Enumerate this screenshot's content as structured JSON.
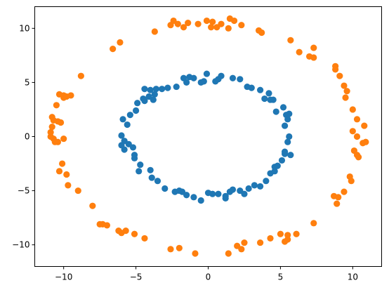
{
  "chart_data": {
    "type": "scatter",
    "title": "",
    "xlabel": "",
    "ylabel": "",
    "xlim": [
      -12,
      12
    ],
    "ylim": [
      -12,
      12
    ],
    "xticks": [
      -10,
      -5,
      0,
      5,
      10
    ],
    "yticks": [
      -10,
      -5,
      0,
      5,
      10
    ],
    "grid": false,
    "legend": "none",
    "series": [
      {
        "color": "#1f77b4",
        "points": [
          [
            -0.1,
            5.8
          ],
          [
            0.7,
            5.3
          ],
          [
            -0.5,
            5.0
          ],
          [
            -0.3,
            5.1
          ],
          [
            -1.0,
            5.4
          ],
          [
            -1.3,
            5.5
          ],
          [
            -1.5,
            5.0
          ],
          [
            -1.7,
            5.4
          ],
          [
            -2.2,
            4.6
          ],
          [
            -2.8,
            4.5
          ],
          [
            -3.2,
            4.4
          ],
          [
            -3.6,
            4.4
          ],
          [
            -4.0,
            4.3
          ],
          [
            -4.4,
            4.4
          ],
          [
            -3.7,
            3.9
          ],
          [
            -4.1,
            3.7
          ],
          [
            -3.8,
            3.4
          ],
          [
            -4.4,
            3.3
          ],
          [
            -4.5,
            3.5
          ],
          [
            -4.9,
            3.1
          ],
          [
            -5.0,
            2.4
          ],
          [
            -5.4,
            2.0
          ],
          [
            -5.9,
            1.6
          ],
          [
            -5.6,
            1.1
          ],
          [
            -6.0,
            0.1
          ],
          [
            -5.8,
            -0.4
          ],
          [
            -5.5,
            -0.7
          ],
          [
            -6.0,
            -0.8
          ],
          [
            -5.2,
            -1.0
          ],
          [
            -5.8,
            -1.2
          ],
          [
            -5.1,
            -1.7
          ],
          [
            -5.1,
            -2.0
          ],
          [
            -4.7,
            -2.6
          ],
          [
            -4.8,
            -3.2
          ],
          [
            -4.0,
            -3.1
          ],
          [
            -3.9,
            -3.8
          ],
          [
            -3.5,
            -4.1
          ],
          [
            -3.0,
            -4.8
          ],
          [
            -2.3,
            -5.1
          ],
          [
            -2.0,
            -5.0
          ],
          [
            -1.8,
            -5.1
          ],
          [
            -1.5,
            -5.4
          ],
          [
            -1.0,
            -5.6
          ],
          [
            -0.5,
            -5.9
          ],
          [
            0.0,
            -5.2
          ],
          [
            0.3,
            -5.3
          ],
          [
            0.7,
            -5.3
          ],
          [
            1.2,
            -5.5
          ],
          [
            1.2,
            -5.7
          ],
          [
            1.5,
            -5.1
          ],
          [
            1.7,
            -4.9
          ],
          [
            2.2,
            -5.0
          ],
          [
            2.5,
            -5.3
          ],
          [
            2.8,
            -4.8
          ],
          [
            3.2,
            -4.5
          ],
          [
            3.6,
            -4.6
          ],
          [
            4.0,
            -4.1
          ],
          [
            4.3,
            -3.4
          ],
          [
            4.6,
            -3.2
          ],
          [
            4.6,
            -2.8
          ],
          [
            4.8,
            -2.7
          ],
          [
            5.1,
            -2.2
          ],
          [
            5.3,
            -1.6
          ],
          [
            5.3,
            -1.4
          ],
          [
            5.5,
            -0.5
          ],
          [
            5.7,
            -1.7
          ],
          [
            5.6,
            0.0
          ],
          [
            5.3,
            1.0
          ],
          [
            5.5,
            1.6
          ],
          [
            5.4,
            2.0
          ],
          [
            5.6,
            2.1
          ],
          [
            5.2,
            2.7
          ],
          [
            4.7,
            2.3
          ],
          [
            4.3,
            3.4
          ],
          [
            4.5,
            3.4
          ],
          [
            3.9,
            3.5
          ],
          [
            3.6,
            4.3
          ],
          [
            4.2,
            4.0
          ],
          [
            3.0,
            4.5
          ],
          [
            2.7,
            4.6
          ],
          [
            2.2,
            5.3
          ],
          [
            1.7,
            5.4
          ],
          [
            0.5,
            5.1
          ],
          [
            0.9,
            5.6
          ]
        ]
      },
      {
        "color": "#ff7f0e",
        "points": [
          [
            -0.1,
            10.7
          ],
          [
            0.3,
            10.6
          ],
          [
            0.9,
            10.4
          ],
          [
            1.5,
            10.9
          ],
          [
            1.8,
            10.7
          ],
          [
            2.3,
            10.3
          ],
          [
            1.4,
            10.0
          ],
          [
            0.6,
            10.1
          ],
          [
            0.2,
            10.1
          ],
          [
            -0.7,
            10.4
          ],
          [
            -1.4,
            10.5
          ],
          [
            -1.7,
            10.1
          ],
          [
            -2.1,
            10.4
          ],
          [
            -2.4,
            10.7
          ],
          [
            -2.6,
            10.3
          ],
          [
            -3.7,
            9.7
          ],
          [
            3.5,
            9.8
          ],
          [
            3.7,
            9.6
          ],
          [
            5.7,
            8.9
          ],
          [
            6.3,
            7.8
          ],
          [
            7.0,
            7.4
          ],
          [
            7.3,
            8.2
          ],
          [
            7.3,
            7.3
          ],
          [
            8.8,
            6.5
          ],
          [
            8.8,
            6.2
          ],
          [
            9.1,
            5.6
          ],
          [
            9.4,
            4.7
          ],
          [
            9.6,
            4.2
          ],
          [
            9.5,
            3.6
          ],
          [
            10.0,
            2.5
          ],
          [
            10.3,
            1.6
          ],
          [
            10.8,
            1.0
          ],
          [
            10.3,
            0.0
          ],
          [
            10.0,
            0.5
          ],
          [
            10.9,
            -0.5
          ],
          [
            10.7,
            -0.6
          ],
          [
            10.1,
            -1.3
          ],
          [
            10.3,
            -1.7
          ],
          [
            10.4,
            -1.9
          ],
          [
            9.8,
            -3.7
          ],
          [
            9.9,
            -4.1
          ],
          [
            9.4,
            -5.1
          ],
          [
            8.7,
            -5.5
          ],
          [
            9.0,
            -5.6
          ],
          [
            8.9,
            -6.2
          ],
          [
            7.3,
            -8.0
          ],
          [
            6.1,
            -9.0
          ],
          [
            5.5,
            -9.1
          ],
          [
            5.5,
            -9.5
          ],
          [
            5.0,
            -9.0
          ],
          [
            5.3,
            -9.7
          ],
          [
            4.3,
            -9.4
          ],
          [
            3.6,
            -9.8
          ],
          [
            2.5,
            -9.8
          ],
          [
            2.3,
            -10.4
          ],
          [
            2.0,
            -10.1
          ],
          [
            1.4,
            -10.8
          ],
          [
            -0.9,
            -10.8
          ],
          [
            -2.0,
            -10.3
          ],
          [
            -2.6,
            -10.4
          ],
          [
            -4.4,
            -9.4
          ],
          [
            -5.1,
            -9.0
          ],
          [
            -5.7,
            -8.7
          ],
          [
            -6.0,
            -8.9
          ],
          [
            -6.2,
            -8.7
          ],
          [
            -7.0,
            -8.2
          ],
          [
            -7.3,
            -8.1
          ],
          [
            -7.5,
            -8.1
          ],
          [
            -8.0,
            -6.4
          ],
          [
            -9.0,
            -5.0
          ],
          [
            -9.7,
            -4.5
          ],
          [
            -9.8,
            -3.5
          ],
          [
            -10.3,
            -3.2
          ],
          [
            -10.1,
            -2.5
          ],
          [
            -10.4,
            -0.5
          ],
          [
            -10.0,
            -0.2
          ],
          [
            -10.7,
            -0.2
          ],
          [
            -10.6,
            -0.5
          ],
          [
            -10.9,
            0.0
          ],
          [
            -10.9,
            0.4
          ],
          [
            -10.8,
            0.9
          ],
          [
            -10.4,
            1.4
          ],
          [
            -10.8,
            1.8
          ],
          [
            -10.7,
            1.5
          ],
          [
            -10.2,
            1.3
          ],
          [
            -10.5,
            2.9
          ],
          [
            -10.0,
            3.6
          ],
          [
            -10.3,
            3.9
          ],
          [
            -10.0,
            3.8
          ],
          [
            -9.8,
            3.7
          ],
          [
            -9.5,
            3.8
          ],
          [
            -8.8,
            5.6
          ],
          [
            -6.6,
            8.1
          ],
          [
            -6.1,
            8.7
          ]
        ]
      }
    ]
  }
}
